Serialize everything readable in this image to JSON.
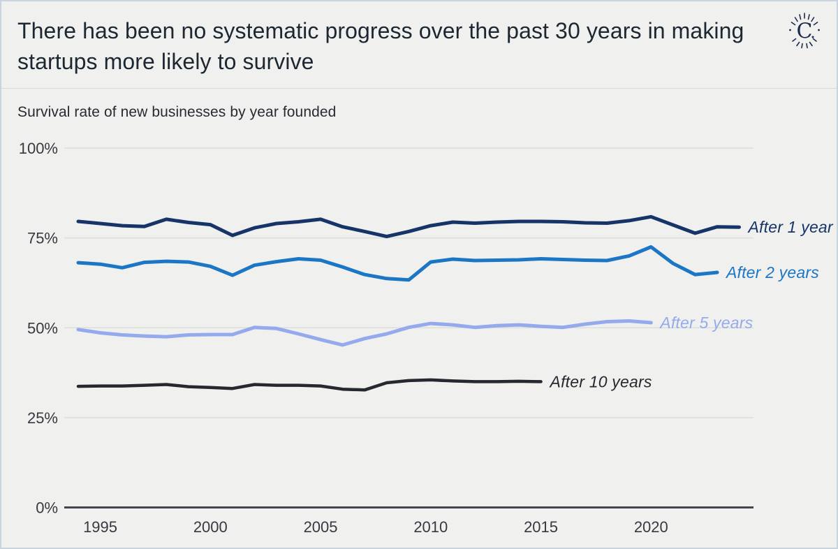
{
  "header": {
    "title": "There has been no systematic progress over the past 30 years in making startups more likely to survive",
    "logo_letter": "C"
  },
  "subtitle": "Survival rate of new businesses by year founded",
  "colors": {
    "background": "#f0f1ef",
    "page_border": "#c9d4dc",
    "header_divider": "#d7dad7",
    "title_text": "#1d2732",
    "gridline": "#dcdedb",
    "axis_line": "#42464d",
    "tick_text": "#36393f",
    "after_1_year": "#173468",
    "after_2_years": "#1b76c5",
    "after_5_years": "#94aaec",
    "after_10_years": "#26282f",
    "logo": "#1b2b4a"
  },
  "chart_data": {
    "type": "line",
    "title": "There has been no systematic progress over the past 30 years in making startups more likely to survive",
    "subtitle": "Survival rate of new businesses by year founded",
    "xlim": [
      1994,
      2024
    ],
    "ylim": [
      0,
      100
    ],
    "grid": "horizontal",
    "legend_position": "end-of-line",
    "y_ticks": [
      {
        "value": 100,
        "label": "100%"
      },
      {
        "value": 75,
        "label": "75%"
      },
      {
        "value": 50,
        "label": "50%"
      },
      {
        "value": 25,
        "label": "25%"
      },
      {
        "value": 0,
        "label": "0%"
      }
    ],
    "x_ticks": [
      {
        "value": 1995,
        "label": "1995"
      },
      {
        "value": 2000,
        "label": "2000"
      },
      {
        "value": 2005,
        "label": "2005"
      },
      {
        "value": 2010,
        "label": "2010"
      },
      {
        "value": 2015,
        "label": "2015"
      },
      {
        "value": 2020,
        "label": "2020"
      }
    ],
    "series": [
      {
        "name": "After 1 year",
        "color": "#173468",
        "stroke_width": 5,
        "start_year": 1994,
        "values": [
          79.6,
          79.0,
          78.4,
          78.2,
          80.2,
          79.3,
          78.7,
          75.7,
          77.8,
          79.0,
          79.5,
          80.2,
          78.1,
          76.8,
          75.4,
          76.8,
          78.4,
          79.4,
          79.1,
          79.4,
          79.6,
          79.6,
          79.5,
          79.2,
          79.1,
          79.8,
          80.9,
          78.6,
          76.3,
          78.1,
          78.0
        ]
      },
      {
        "name": "After 2 years",
        "color": "#1b76c5",
        "stroke_width": 5,
        "start_year": 1994,
        "values": [
          68.1,
          67.7,
          66.7,
          68.2,
          68.5,
          68.3,
          67.1,
          64.6,
          67.4,
          68.4,
          69.2,
          68.8,
          66.9,
          64.8,
          63.7,
          63.3,
          68.3,
          69.1,
          68.7,
          68.8,
          68.9,
          69.2,
          69.0,
          68.8,
          68.7,
          70.0,
          72.5,
          67.9,
          64.8,
          65.4
        ]
      },
      {
        "name": "After 5 years",
        "color": "#94aaec",
        "stroke_width": 5,
        "start_year": 1994,
        "values": [
          49.5,
          48.6,
          48.0,
          47.7,
          47.5,
          48.0,
          48.1,
          48.1,
          50.1,
          49.8,
          48.3,
          46.7,
          45.2,
          47.0,
          48.3,
          50.1,
          51.2,
          50.8,
          50.1,
          50.6,
          50.8,
          50.4,
          50.1,
          51.0,
          51.7,
          51.9,
          51.4
        ]
      },
      {
        "name": "After 10 years",
        "color": "#26282f",
        "stroke_width": 4.5,
        "start_year": 1994,
        "values": [
          33.7,
          33.8,
          33.8,
          34.0,
          34.2,
          33.6,
          33.4,
          33.1,
          34.2,
          34.0,
          34.0,
          33.8,
          32.9,
          32.7,
          34.7,
          35.3,
          35.5,
          35.2,
          35.0,
          35.0,
          35.1,
          35.0
        ]
      }
    ]
  }
}
